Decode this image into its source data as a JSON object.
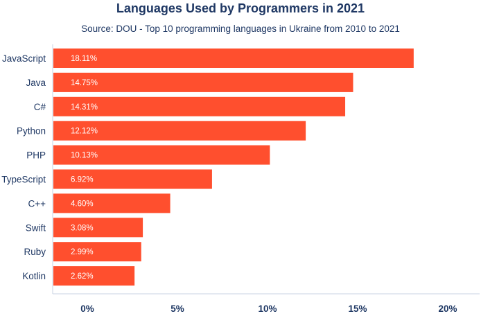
{
  "title": "Languages Used by Programmers in 2021",
  "subtitle": "Source: DOU - Top 10 programming languages in Ukraine from 2010 to 2021",
  "colors": {
    "bar": "#ff4f2e",
    "text": "#1f3864",
    "axis": "#c9d3e3"
  },
  "chart_data": {
    "type": "bar",
    "orientation": "horizontal",
    "title": "Languages Used by Programmers in 2021",
    "subtitle": "Source: DOU - Top 10 programming languages in Ukraine from 2010 to 2021",
    "categories": [
      "JavaScript",
      "Java",
      "C#",
      "Python",
      "PHP",
      "TypeScript",
      "C++",
      "Swift",
      "Ruby",
      "Kotlin"
    ],
    "values": [
      18.11,
      14.75,
      14.31,
      12.12,
      10.13,
      6.92,
      4.6,
      3.08,
      2.99,
      2.62
    ],
    "data_labels": [
      "18.11%",
      "14.75%",
      "14.31%",
      "12.12%",
      "10.13%",
      "6.92%",
      "4.60%",
      "3.08%",
      "2.99%",
      "2.62%"
    ],
    "xlim": [
      0,
      20
    ],
    "xticks": [
      0,
      5,
      10,
      15,
      20
    ],
    "xtick_labels": [
      "0%",
      "5%",
      "10%",
      "15%",
      "20%"
    ],
    "grid": false,
    "legend": "none"
  }
}
